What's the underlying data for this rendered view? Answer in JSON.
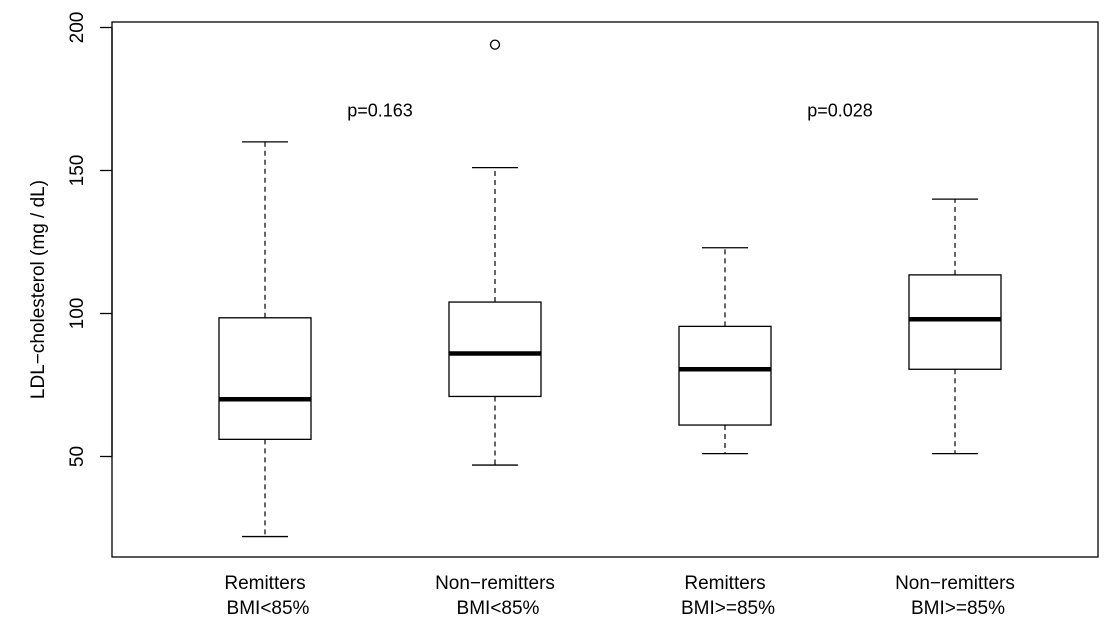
{
  "chart_data": {
    "type": "boxplot",
    "ylabel": "LDL−cholesterol (mg / dL)",
    "xlabel": "",
    "ylim": [
      15,
      203
    ],
    "yticks": [
      50,
      100,
      150,
      200
    ],
    "categories": [
      [
        "Remitters",
        "BMI<85%"
      ],
      [
        "Non−remitters",
        "BMI<85%"
      ],
      [
        "Remitters",
        "BMI>=85%"
      ],
      [
        "Non−remitters",
        "BMI>=85%"
      ]
    ],
    "boxes": [
      {
        "whisker_low": 22,
        "q1": 56,
        "median": 70,
        "q3": 98.5,
        "whisker_high": 160,
        "outliers": []
      },
      {
        "whisker_low": 47,
        "q1": 71,
        "median": 86,
        "q3": 104,
        "whisker_high": 151,
        "outliers": [
          194
        ]
      },
      {
        "whisker_low": 51,
        "q1": 61,
        "median": 80.5,
        "q3": 95.5,
        "whisker_high": 123,
        "outliers": []
      },
      {
        "whisker_low": 51,
        "q1": 80.5,
        "median": 98,
        "q3": 113.5,
        "whisker_high": 140,
        "outliers": []
      }
    ],
    "annotations": [
      {
        "text": "p=0.163",
        "x": 1.5,
        "y": 171
      },
      {
        "text": "p=0.028",
        "x": 3.5,
        "y": 171
      }
    ],
    "grid": false,
    "legend": "none"
  }
}
